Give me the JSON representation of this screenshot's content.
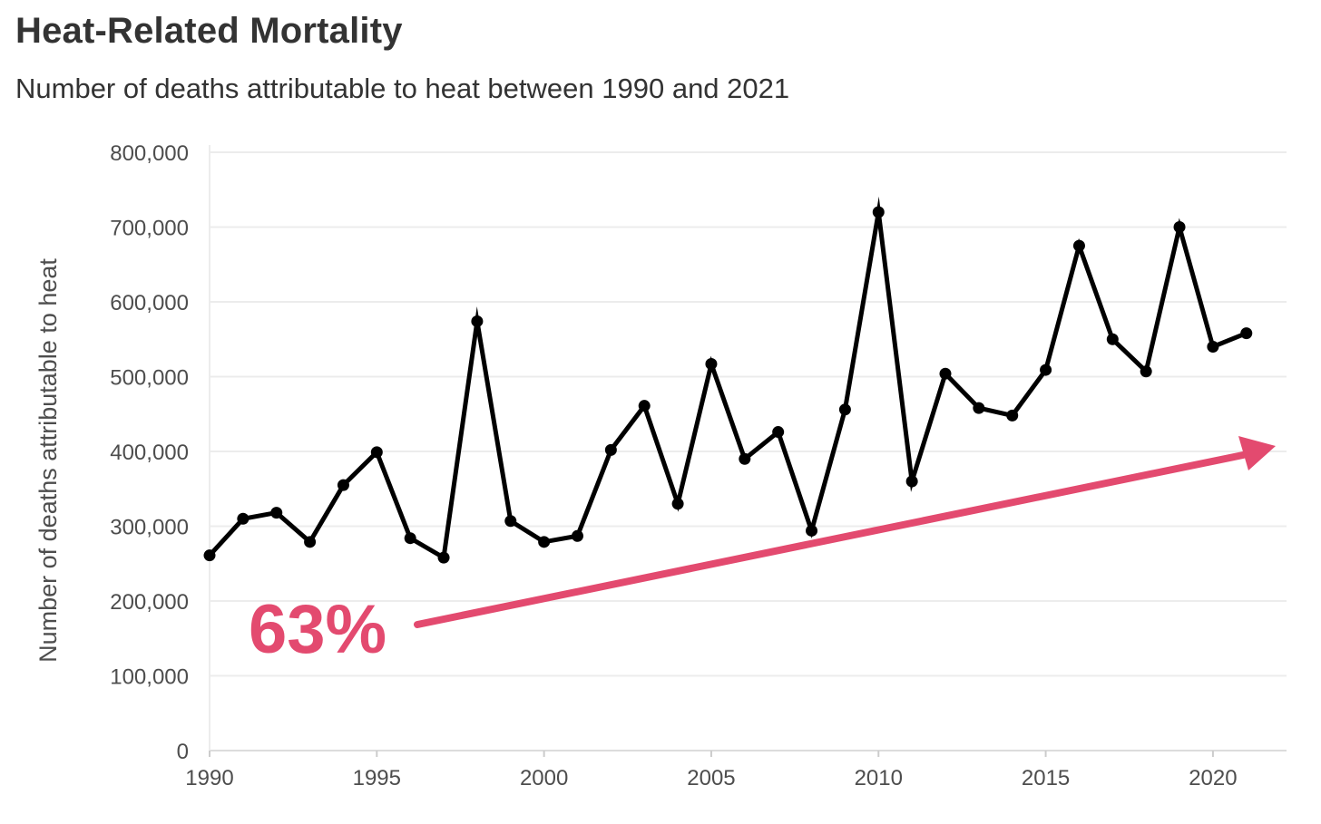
{
  "chart_data": {
    "type": "line",
    "title": "Heat-Related Mortality",
    "subtitle": "Number of deaths attributable to heat between 1990 and 2021",
    "xlabel": "",
    "ylabel": "Number of deaths attributable to heat",
    "xlim": [
      1990,
      2022.2
    ],
    "ylim": [
      0,
      800000
    ],
    "x_ticks": [
      1990,
      1995,
      2000,
      2005,
      2010,
      2015,
      2020
    ],
    "x_tick_labels": [
      "1990",
      "1995",
      "2000",
      "2005",
      "2010",
      "2015",
      "2020"
    ],
    "y_ticks": [
      0,
      100000,
      200000,
      300000,
      400000,
      500000,
      600000,
      700000,
      800000
    ],
    "y_tick_labels": [
      "0",
      "100,000",
      "200,000",
      "300,000",
      "400,000",
      "500,000",
      "600,000",
      "700,000",
      "800,000"
    ],
    "grid": true,
    "series": [
      {
        "color": "#000000",
        "x": [
          1990,
          1991,
          1992,
          1993,
          1994,
          1995,
          1996,
          1997,
          1998,
          1999,
          2000,
          2001,
          2002,
          2003,
          2004,
          2005,
          2006,
          2007,
          2008,
          2009,
          2010,
          2011,
          2012,
          2013,
          2014,
          2015,
          2016,
          2017,
          2018,
          2019,
          2020,
          2021
        ],
        "values": [
          261000,
          310000,
          318000,
          279000,
          355000,
          399000,
          284000,
          258000,
          574000,
          307000,
          279000,
          287000,
          402000,
          461000,
          330000,
          517000,
          390000,
          426000,
          294000,
          456000,
          720000,
          360000,
          504000,
          458000,
          448000,
          509000,
          675000,
          550000,
          507000,
          700000,
          540000,
          558000
        ]
      }
    ],
    "annotation": {
      "text": "63%",
      "color": "#e34a6f",
      "arrow_color": "#e34a6f"
    }
  }
}
